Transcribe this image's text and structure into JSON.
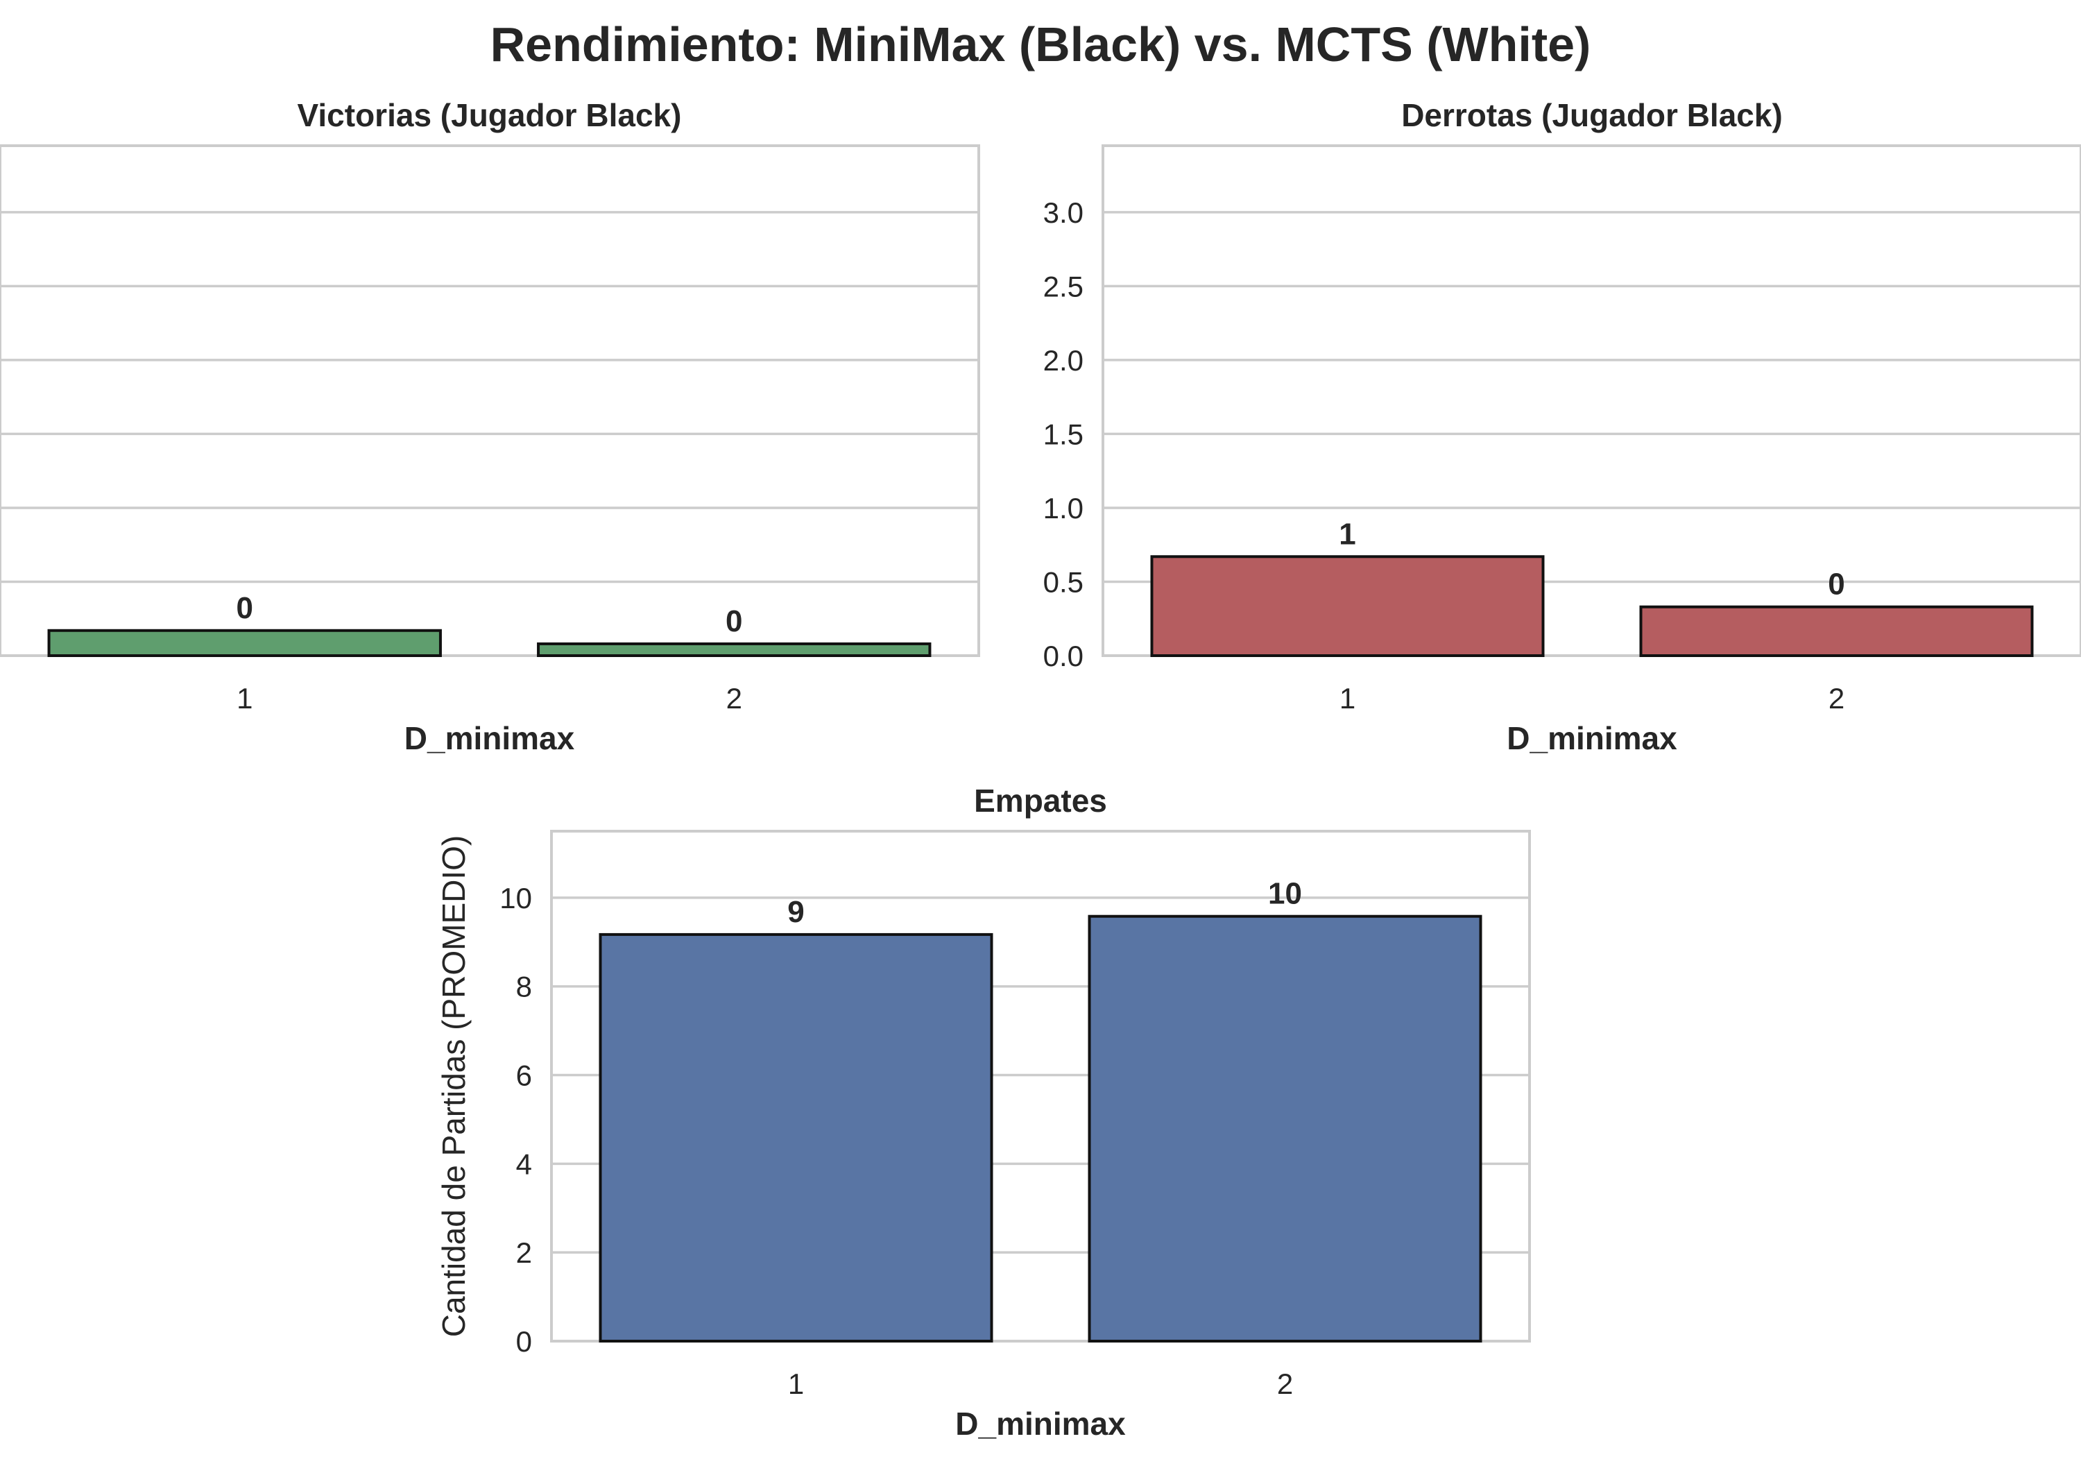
{
  "figure": {
    "title": "Rendimiento: MiniMax (Black) vs. MCTS (White)"
  },
  "chart_data": [
    {
      "type": "bar",
      "title": "Victorias (Jugador Black)",
      "xlabel": "D_minimax",
      "ylabel": "",
      "categories": [
        "1",
        "2"
      ],
      "values": [
        0.17,
        0.08
      ],
      "data_labels": [
        "0",
        "0"
      ],
      "ylim": [
        0,
        3.45
      ],
      "yticks": [
        0,
        0.5,
        1.0,
        1.5,
        2.0,
        2.5,
        3.0
      ],
      "ytick_labels": [],
      "grid": true,
      "color": "#5f9e6e"
    },
    {
      "type": "bar",
      "title": "Derrotas (Jugador Black)",
      "xlabel": "D_minimax",
      "ylabel": "",
      "categories": [
        "1",
        "2"
      ],
      "values": [
        0.67,
        0.33
      ],
      "data_labels": [
        "1",
        "0"
      ],
      "ylim": [
        0,
        3.45
      ],
      "yticks": [
        0,
        0.5,
        1.0,
        1.5,
        2.0,
        2.5,
        3.0
      ],
      "ytick_labels": [
        "0.0",
        "0.5",
        "1.0",
        "1.5",
        "2.0",
        "2.5",
        "3.0"
      ],
      "grid": true,
      "color": "#b55d60"
    },
    {
      "type": "bar",
      "title": "Empates",
      "xlabel": "D_minimax",
      "ylabel": "Cantidad de Partidas (PROMEDIO)",
      "categories": [
        "1",
        "2"
      ],
      "values": [
        9.17,
        9.58
      ],
      "data_labels": [
        "9",
        "10"
      ],
      "ylim": [
        0,
        11.5
      ],
      "yticks": [
        0,
        2,
        4,
        6,
        8,
        10
      ],
      "ytick_labels": [
        "0",
        "2",
        "4",
        "6",
        "8",
        "10"
      ],
      "grid": true,
      "color": "#5975a4"
    }
  ]
}
